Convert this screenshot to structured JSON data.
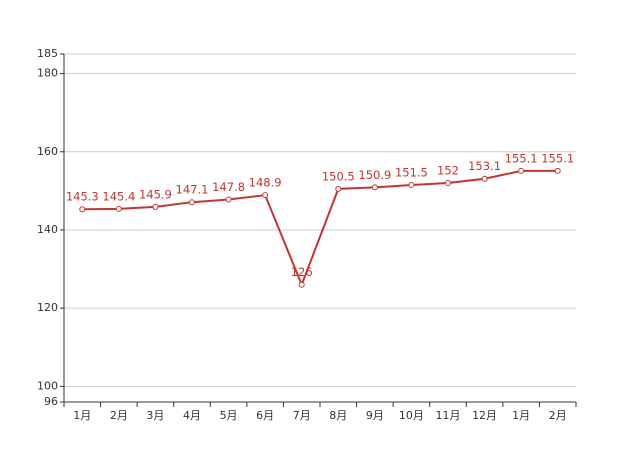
{
  "chart_data": {
    "type": "line",
    "categories": [
      "1月",
      "2月",
      "3月",
      "4月",
      "5月",
      "6月",
      "7月",
      "8月",
      "9月",
      "10月",
      "11月",
      "12月",
      "1月",
      "2月"
    ],
    "values": [
      145.3,
      145.4,
      145.9,
      147.1,
      147.8,
      148.9,
      126,
      150.5,
      150.9,
      151.5,
      152,
      153.1,
      155.1,
      155.1
    ],
    "color": "#c23531",
    "ylim": [
      96,
      185
    ],
    "yticks": [
      96,
      100,
      120,
      140,
      160,
      180,
      185
    ],
    "grid": true
  }
}
